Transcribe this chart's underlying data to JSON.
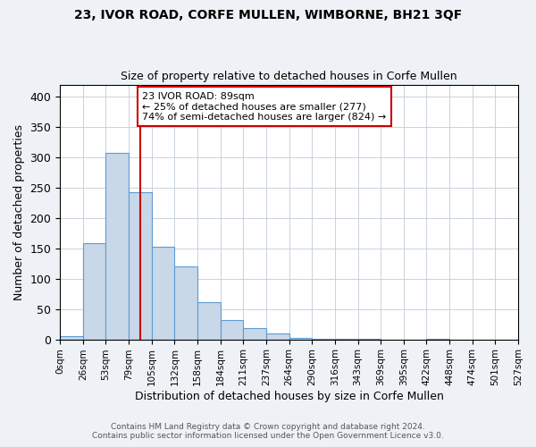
{
  "title": "23, IVOR ROAD, CORFE MULLEN, WIMBORNE, BH21 3QF",
  "subtitle": "Size of property relative to detached houses in Corfe Mullen",
  "xlabel": "Distribution of detached houses by size in Corfe Mullen",
  "ylabel": "Number of detached properties",
  "bin_labels": [
    "0sqm",
    "26sqm",
    "53sqm",
    "79sqm",
    "105sqm",
    "132sqm",
    "158sqm",
    "184sqm",
    "211sqm",
    "237sqm",
    "264sqm",
    "290sqm",
    "316sqm",
    "343sqm",
    "369sqm",
    "395sqm",
    "422sqm",
    "448sqm",
    "474sqm",
    "501sqm",
    "527sqm"
  ],
  "bar_heights": [
    5,
    158,
    307,
    243,
    153,
    120,
    62,
    32,
    18,
    10,
    2,
    1,
    1,
    1,
    0,
    0,
    1,
    0,
    0,
    0
  ],
  "bar_color": "#c8d8e8",
  "bar_edge_color": "#5b9bd5",
  "vline_x": 3.5,
  "vline_color": "#cc0000",
  "annotation_text": "23 IVOR ROAD: 89sqm\n← 25% of detached houses are smaller (277)\n74% of semi-detached houses are larger (824) →",
  "annotation_box_color": "#ffffff",
  "annotation_box_edge": "#cc0000",
  "ylim": [
    0,
    420
  ],
  "yticks": [
    0,
    50,
    100,
    150,
    200,
    250,
    300,
    350,
    400
  ],
  "footer1": "Contains HM Land Registry data © Crown copyright and database right 2024.",
  "footer2": "Contains public sector information licensed under the Open Government Licence v3.0.",
  "background_color": "#eef2f6",
  "plot_background": "#ffffff"
}
